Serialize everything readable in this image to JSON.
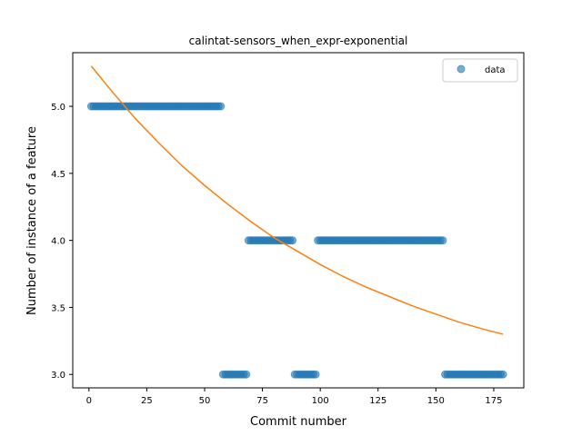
{
  "chart_data": {
    "type": "scatter",
    "title": "calintat-sensors_when_expr-exponential",
    "xlabel": "Commit number",
    "ylabel": "Number of instance of a feature",
    "xlim": [
      -7,
      188
    ],
    "ylim": [
      2.9,
      5.4
    ],
    "xticks": [
      0,
      25,
      50,
      75,
      100,
      125,
      150,
      175
    ],
    "yticks": [
      3.0,
      3.5,
      4.0,
      4.5,
      5.0
    ],
    "ytick_labels": [
      "3.0",
      "3.5",
      "4.0",
      "4.5",
      "5.0"
    ],
    "grid": false,
    "legend": {
      "placement": "top-right",
      "entries": [
        "data"
      ]
    },
    "colors": {
      "data": "#1f77b4",
      "fit": "#ff7f0e"
    },
    "series": [
      {
        "name": "data",
        "kind": "points",
        "segments": [
          {
            "x_from": 1,
            "x_to": 57,
            "y": 5
          },
          {
            "x_from": 58,
            "x_to": 68,
            "y": 3
          },
          {
            "x_from": 69,
            "x_to": 88,
            "y": 4
          },
          {
            "x_from": 89,
            "x_to": 98,
            "y": 3
          },
          {
            "x_from": 99,
            "x_to": 153,
            "y": 4
          },
          {
            "x_from": 154,
            "x_to": 179,
            "y": 3
          }
        ]
      },
      {
        "kind": "line",
        "x": [
          1,
          10,
          20,
          30,
          40,
          50,
          60,
          70,
          80,
          90,
          100,
          110,
          120,
          130,
          140,
          150,
          160,
          170,
          179
        ],
        "y": [
          5.3,
          5.11,
          4.91,
          4.73,
          4.56,
          4.41,
          4.27,
          4.14,
          4.02,
          3.92,
          3.82,
          3.73,
          3.65,
          3.58,
          3.51,
          3.45,
          3.39,
          3.34,
          3.3
        ]
      }
    ]
  }
}
